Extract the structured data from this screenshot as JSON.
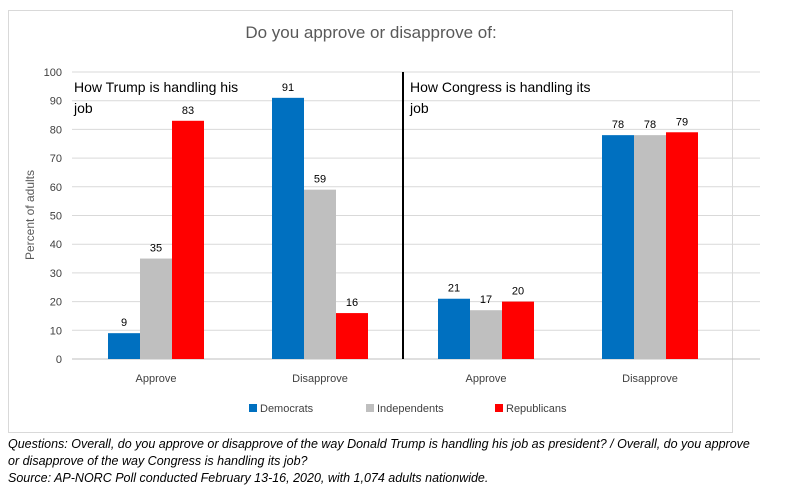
{
  "chart_data": {
    "type": "bar",
    "title": "Do you approve or disapprove of:",
    "ylabel": "Percent of adults",
    "xlabel": "",
    "ylim": [
      0,
      100
    ],
    "yticks": [
      0,
      10,
      20,
      30,
      40,
      50,
      60,
      70,
      80,
      90,
      100
    ],
    "grid": true,
    "legend_position": "bottom",
    "panels": [
      {
        "label": "How Trump is handling his job",
        "label_lines": [
          "How Trump is handling his",
          "job"
        ]
      },
      {
        "label": "How Congress is handling its job",
        "label_lines": [
          "How Congress is handling its",
          "job"
        ]
      }
    ],
    "categories": [
      "Approve",
      "Disapprove",
      "Approve",
      "Disapprove"
    ],
    "series": [
      {
        "name": "Democrats",
        "color": "#0070c0",
        "values": [
          9,
          91,
          21,
          78
        ]
      },
      {
        "name": "Independents",
        "color": "#bfbfbf",
        "values": [
          35,
          59,
          17,
          78
        ]
      },
      {
        "name": "Republicans",
        "color": "#ff0000",
        "values": [
          83,
          16,
          20,
          79
        ]
      }
    ]
  },
  "notes": {
    "question_line1": "Questions: Overall, do you approve or disapprove of the way Donald Trump is handling his job as president? / Overall, do you approve",
    "question_line2": "or disapprove of the way Congress is handling its job?",
    "source": "Source: AP-NORC Poll conducted February 13-16, 2020, with 1,074 adults nationwide."
  }
}
